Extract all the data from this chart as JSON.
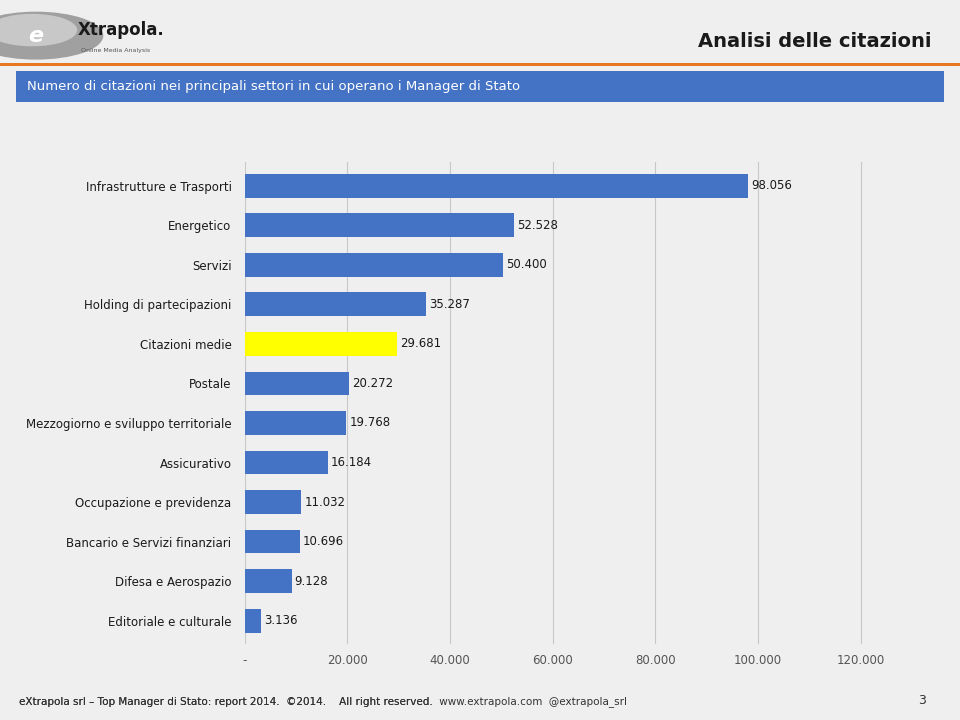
{
  "title": "Analisi delle citazioni",
  "subtitle": "Numero di citazioni nei principali settori in cui operano i Manager di Stato",
  "categories": [
    "Infrastrutture e Trasporti",
    "Energetico",
    "Servizi",
    "Holding di partecipazioni",
    "Citazioni medie",
    "Postale",
    "Mezzogiorno e sviluppo territoriale",
    "Assicurativo",
    "Occupazione e previdenza",
    "Bancario e Servizi finanziari",
    "Difesa e Aerospazio",
    "Editoriale e culturale"
  ],
  "values": [
    98.056,
    52.528,
    50.4,
    35.287,
    29.681,
    20.272,
    19.768,
    16.184,
    11.032,
    10.696,
    9.128,
    3.136
  ],
  "bar_colors": [
    "#4472C4",
    "#4472C4",
    "#4472C4",
    "#4472C4",
    "#FFFF00",
    "#4472C4",
    "#4472C4",
    "#4472C4",
    "#4472C4",
    "#4472C4",
    "#4472C4",
    "#4472C4"
  ],
  "value_labels": [
    "98.056",
    "52.528",
    "50.400",
    "35.287",
    "29.681",
    "20.272",
    "19.768",
    "16.184",
    "11.032",
    "10.696",
    "9.128",
    "3.136"
  ],
  "xlim": [
    0,
    130
  ],
  "xtick_labels": [
    "-",
    "20.000",
    "40.000",
    "60.000",
    "80.000",
    "100.000",
    "120.000"
  ],
  "background_color": "#EFEFEF",
  "subtitle_bg_color": "#4472C4",
  "subtitle_text_color": "#FFFFFF",
  "bar_height": 0.6,
  "footer_text_plain": "eXtrapola srl – Top Manager di Stato: report 2014.  ©2014.    All right reserved.  ",
  "footer_text_link": "www.extrapola.com",
  "footer_text_end": "  @extrapola_srl",
  "page_number": "3",
  "title_color": "#1A1A1A",
  "grid_color": "#C8C8C8",
  "label_color": "#1A1A1A",
  "value_label_color": "#1A1A1A",
  "orange_line_color": "#E87722"
}
